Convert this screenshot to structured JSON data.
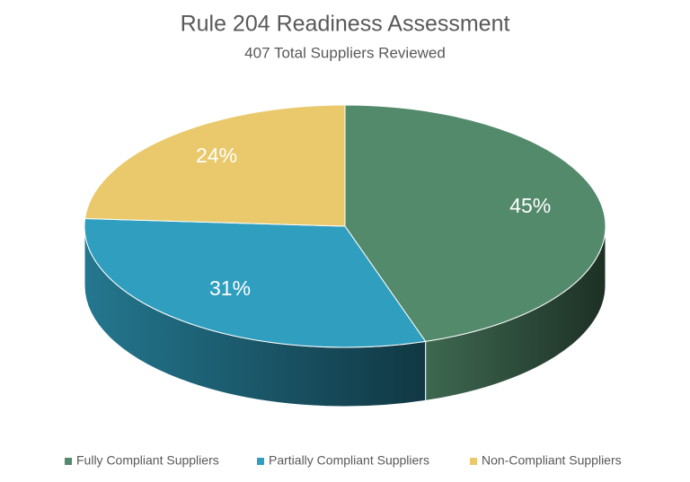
{
  "chart_data": {
    "type": "pie",
    "title": "Rule 204 Readiness Assessment",
    "subtitle": "407 Total Suppliers Reviewed",
    "categories": [
      "Fully Compliant Suppliers",
      "Partially Compliant Suppliers",
      "Non-Compliant Suppliers"
    ],
    "values": [
      45,
      31,
      24
    ],
    "value_labels": [
      "45%",
      "31%",
      "24%"
    ],
    "colors": [
      "#528a6b",
      "#309ebf",
      "#e9c96b"
    ],
    "legend": "bottom"
  }
}
